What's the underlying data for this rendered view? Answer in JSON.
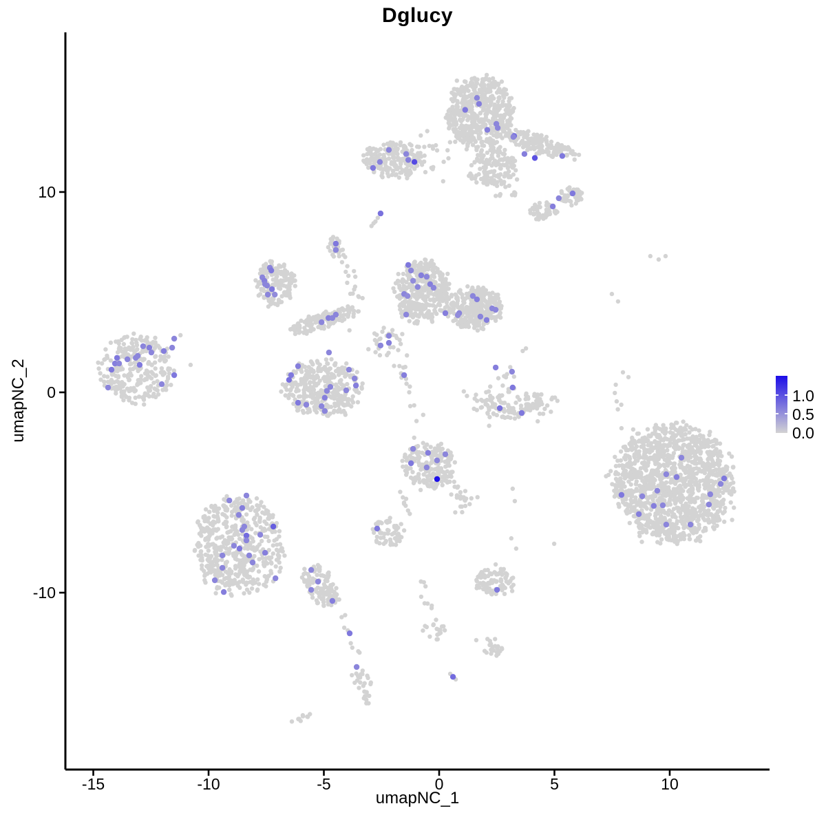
{
  "title": "Dglucy",
  "axes": {
    "xlabel": "umapNC_1",
    "ylabel": "umapNC_2",
    "x_ticks": [
      -15,
      -10,
      -5,
      0,
      5,
      10
    ],
    "y_ticks": [
      -10,
      0,
      10
    ],
    "x_range": [
      -16.21,
      14.33
    ],
    "y_range": [
      -18.83,
      17.97
    ]
  },
  "legend": {
    "labels": [
      "1.0",
      "0.5",
      "0.0"
    ],
    "max_value": 1.52
  },
  "colors": {
    "low": "#d3d3d3",
    "high": "#1c0de8",
    "axis": "#000000",
    "background": "#ffffff"
  },
  "chart_data": {
    "type": "scatter",
    "title": "Dglucy",
    "xlabel": "umapNC_1",
    "ylabel": "umapNC_2",
    "xlim": [
      -16.21,
      14.33
    ],
    "ylim": [
      -18.83,
      17.97
    ],
    "legend_position": "right",
    "grid": false,
    "point_radius_gray": 3.2,
    "point_radius_expressing": 4.2,
    "clusters": [
      {
        "kind": "disk",
        "cx": 1.78,
        "cy": 13.95,
        "rx": 1.45,
        "ry": 1.8,
        "n": 520
      },
      {
        "kind": "disk",
        "cx": 2.3,
        "cy": 11.25,
        "rx": 1.05,
        "ry": 0.95,
        "n": 130
      },
      {
        "kind": "gauss",
        "cx": -0.2,
        "cy": 11.7,
        "rx": 0.55,
        "ry": 0.8,
        "n": 20
      },
      {
        "kind": "disk",
        "cx": 4.4,
        "cy": 12.35,
        "rx": 1.55,
        "ry": 0.5,
        "n": 160,
        "tilt": -0.35
      },
      {
        "kind": "disk",
        "cx": 5.75,
        "cy": 9.8,
        "rx": 0.48,
        "ry": 0.45,
        "n": 55
      },
      {
        "kind": "disk",
        "cx": 4.5,
        "cy": 9.05,
        "rx": 0.6,
        "ry": 0.45,
        "n": 45
      },
      {
        "kind": "gauss",
        "cx": 3.0,
        "cy": 10.1,
        "rx": 0.3,
        "ry": 0.25,
        "n": 14
      },
      {
        "kind": "disk",
        "cx": -1.99,
        "cy": 11.63,
        "rx": 1.32,
        "ry": 0.92,
        "n": 190
      },
      {
        "kind": "disk",
        "cx": -4.5,
        "cy": 7.2,
        "rx": 0.35,
        "ry": 0.55,
        "n": 26
      },
      {
        "kind": "disk",
        "cx": -7.1,
        "cy": 5.43,
        "rx": 0.85,
        "ry": 1.1,
        "n": 150
      },
      {
        "kind": "disk",
        "cx": -0.73,
        "cy": 5.02,
        "rx": 1.15,
        "ry": 1.6,
        "n": 380
      },
      {
        "kind": "disk",
        "cx": 1.55,
        "cy": 4.23,
        "rx": 1.15,
        "ry": 1.05,
        "n": 300
      },
      {
        "kind": "disk",
        "cx": -5.0,
        "cy": 3.6,
        "rx": 1.5,
        "ry": 0.42,
        "n": 140,
        "tilt": 0.35
      },
      {
        "kind": "gauss",
        "cx": -2.3,
        "cy": 2.55,
        "rx": 0.45,
        "ry": 0.4,
        "n": 22
      },
      {
        "kind": "disk",
        "cx": -5.04,
        "cy": 0.24,
        "rx": 1.65,
        "ry": 1.4,
        "n": 330
      },
      {
        "kind": "disk",
        "cx": -13.1,
        "cy": 1.15,
        "rx": 1.6,
        "ry": 1.7,
        "n": 270
      },
      {
        "kind": "gauss",
        "cx": 3.0,
        "cy": 0.9,
        "rx": 0.5,
        "ry": 0.8,
        "n": 16
      },
      {
        "kind": "gauss",
        "cx": 2.15,
        "cy": -0.5,
        "rx": 0.45,
        "ry": 0.35,
        "n": 40
      },
      {
        "kind": "gauss",
        "cx": 3.2,
        "cy": -0.95,
        "rx": 0.55,
        "ry": 0.3,
        "n": 55
      },
      {
        "kind": "gauss",
        "cx": 4.2,
        "cy": -0.5,
        "rx": 0.4,
        "ry": 0.3,
        "n": 40
      },
      {
        "kind": "disk",
        "cx": 10.15,
        "cy": -4.55,
        "rx": 2.6,
        "ry": 2.9,
        "n": 1350
      },
      {
        "kind": "disk",
        "cx": -0.42,
        "cy": -3.64,
        "rx": 1.1,
        "ry": 1.2,
        "n": 190
      },
      {
        "kind": "disk",
        "cx": -2.21,
        "cy": -6.98,
        "rx": 0.72,
        "ry": 0.7,
        "n": 60
      },
      {
        "kind": "disk",
        "cx": -8.66,
        "cy": -7.63,
        "rx": 1.95,
        "ry": 2.5,
        "n": 520
      },
      {
        "kind": "disk",
        "cx": -5.16,
        "cy": -9.62,
        "rx": 0.8,
        "ry": 1.0,
        "n": 110,
        "tilt": -0.5
      },
      {
        "kind": "disk",
        "cx": 2.43,
        "cy": -9.48,
        "rx": 0.85,
        "ry": 0.72,
        "n": 85
      },
      {
        "kind": "disk",
        "cx": 2.3,
        "cy": -12.7,
        "rx": 0.5,
        "ry": 0.42,
        "n": 22
      },
      {
        "kind": "gauss",
        "cx": -0.15,
        "cy": -12.05,
        "rx": 0.28,
        "ry": 0.3,
        "n": 13
      }
    ],
    "strands": [
      {
        "x1": -2.95,
        "y1": 8.3,
        "x2": -2.62,
        "y2": 8.72,
        "n": 4,
        "jitter": 0.05
      },
      {
        "x1": -4.2,
        "y1": 6.75,
        "x2": -3.6,
        "y2": 4.6,
        "n": 8,
        "jitter": 0.12
      },
      {
        "x1": -4.1,
        "y1": 6.6,
        "x2": -3.15,
        "y2": 4.4,
        "n": 8,
        "jitter": 0.15
      },
      {
        "x1": -3.25,
        "y1": 3.3,
        "x2": -1.75,
        "y2": 1.0,
        "n": 13,
        "jitter": 0.3
      },
      {
        "x1": -1.73,
        "y1": 1.4,
        "x2": -1.25,
        "y2": 0.3,
        "n": 6,
        "jitter": 0.1
      },
      {
        "x1": -1.25,
        "y1": 0.2,
        "x2": -0.85,
        "y2": -2.3,
        "n": 6,
        "jitter": 0.15
      },
      {
        "x1": 0.6,
        "y1": -4.4,
        "x2": 1.2,
        "y2": -5.8,
        "n": 28,
        "jitter": 0.22
      },
      {
        "x1": -1.8,
        "y1": -5.0,
        "x2": -1.25,
        "y2": -6.15,
        "n": 8,
        "jitter": 0.12
      },
      {
        "x1": -0.84,
        "y1": -9.21,
        "x2": 0.06,
        "y2": -12.3,
        "n": 13,
        "jitter": 0.12
      },
      {
        "x1": -4.27,
        "y1": -10.93,
        "x2": -3.58,
        "y2": -13.23,
        "n": 9,
        "jitter": 0.1
      },
      {
        "x1": -3.67,
        "y1": -13.9,
        "x2": -3.05,
        "y2": -15.45,
        "n": 26,
        "jitter": 0.2
      },
      {
        "x1": -6.2,
        "y1": -16.5,
        "x2": -5.65,
        "y2": -16.05,
        "n": 10,
        "jitter": 0.1
      }
    ],
    "gray_points": [
      [
        -11.22,
        2.85
      ],
      [
        -10.78,
        1.37
      ],
      [
        2.54,
        12.03
      ],
      [
        2.84,
        11.68
      ],
      [
        2.99,
        11.24
      ],
      [
        1.61,
        10.82
      ],
      [
        9.16,
        6.8
      ],
      [
        9.52,
        6.63
      ],
      [
        9.82,
        6.8
      ],
      [
        7.49,
        4.91
      ],
      [
        7.76,
        4.54
      ],
      [
        7.97,
        1.0
      ],
      [
        8.21,
        0.76
      ],
      [
        7.66,
        0.38
      ],
      [
        7.62,
        -0.03
      ],
      [
        7.7,
        -0.45
      ],
      [
        7.9,
        -0.62
      ],
      [
        7.75,
        -0.85
      ],
      [
        7.91,
        -1.79
      ],
      [
        3.19,
        -4.81
      ],
      [
        3.28,
        -5.43
      ],
      [
        4.99,
        -7.56
      ],
      [
        3.13,
        -7.29
      ],
      [
        3.34,
        -7.8
      ],
      [
        2.45,
        -8.59
      ],
      [
        1.61,
        -12.37
      ],
      [
        0.48,
        -14.05
      ],
      [
        0.72,
        -14.33
      ]
    ],
    "expressing_points": [
      [
        1.64,
        14.7,
        0.6
      ],
      [
        1.73,
        14.4,
        0.65
      ],
      [
        1.13,
        14.1,
        0.7
      ],
      [
        2.48,
        13.4,
        0.6
      ],
      [
        2.09,
        13.1,
        0.65
      ],
      [
        2.54,
        13.2,
        0.6
      ],
      [
        3.25,
        12.8,
        0.8
      ],
      [
        3.22,
        12.75,
        0.6
      ],
      [
        3.7,
        11.9,
        0.65
      ],
      [
        4.15,
        11.7,
        1.0
      ],
      [
        5.34,
        11.8,
        0.7
      ],
      [
        5.79,
        9.93,
        0.7
      ],
      [
        5.19,
        9.69,
        0.6
      ],
      [
        4.93,
        9.28,
        0.65
      ],
      [
        -2.18,
        12.1,
        0.6
      ],
      [
        -1.43,
        11.9,
        0.6
      ],
      [
        -2.57,
        11.5,
        0.6
      ],
      [
        -2.87,
        11.2,
        0.7
      ],
      [
        -1.34,
        11.6,
        0.65
      ],
      [
        -1.07,
        11.5,
        1.05
      ],
      [
        -2.54,
        8.93,
        0.75
      ],
      [
        -4.48,
        7.42,
        0.7
      ],
      [
        -4.48,
        7.11,
        0.6
      ],
      [
        -7.34,
        6.22,
        0.6
      ],
      [
        -7.28,
        6.08,
        0.7
      ],
      [
        -7.67,
        5.74,
        0.6
      ],
      [
        -7.58,
        5.57,
        0.65
      ],
      [
        -7.55,
        5.4,
        0.6
      ],
      [
        -7.46,
        5.33,
        0.6
      ],
      [
        -7.25,
        5.15,
        0.7
      ],
      [
        -7.43,
        4.88,
        0.6
      ],
      [
        -7.13,
        4.88,
        0.55
      ],
      [
        -1.34,
        6.36,
        0.7
      ],
      [
        -1.22,
        6.08,
        0.6
      ],
      [
        -0.78,
        5.84,
        0.65
      ],
      [
        -0.54,
        5.77,
        0.6
      ],
      [
        -1.13,
        5.57,
        0.55
      ],
      [
        -0.93,
        5.26,
        0.6
      ],
      [
        -0.39,
        5.4,
        0.65
      ],
      [
        -0.24,
        5.22,
        0.6
      ],
      [
        -1.52,
        4.91,
        0.6
      ],
      [
        -1.37,
        4.81,
        0.55
      ],
      [
        -1.43,
        3.88,
        0.6
      ],
      [
        0.27,
        3.95,
        0.65
      ],
      [
        1.46,
        4.81,
        0.6
      ],
      [
        1.64,
        4.64,
        0.65
      ],
      [
        2.3,
        4.19,
        0.6
      ],
      [
        2.45,
        4.12,
        0.6
      ],
      [
        0.87,
        3.95,
        0.6
      ],
      [
        1.79,
        3.78,
        0.6
      ],
      [
        2.06,
        3.61,
        0.65
      ],
      [
        0.81,
        3.85,
        0.55
      ],
      [
        -5.1,
        3.5,
        0.6
      ],
      [
        -4.8,
        3.71,
        0.65
      ],
      [
        -4.48,
        3.88,
        0.6
      ],
      [
        -4.63,
        3.71,
        0.6
      ],
      [
        -2.18,
        2.82,
        0.6
      ],
      [
        -2.18,
        2.47,
        0.65
      ],
      [
        -2.54,
        2.34,
        0.6
      ],
      [
        -4.78,
        1.99,
        0.6
      ],
      [
        -6.12,
        1.31,
        0.65
      ],
      [
        -6.42,
        0.86,
        0.7
      ],
      [
        -6.51,
        0.62,
        0.75
      ],
      [
        -3.91,
        1.13,
        0.6
      ],
      [
        -3.67,
        0.69,
        0.6
      ],
      [
        -3.61,
        0.34,
        0.65
      ],
      [
        -4.03,
        0.1,
        0.6
      ],
      [
        -4.72,
        0.27,
        0.6
      ],
      [
        -4.87,
        0.07,
        0.6
      ],
      [
        -4.96,
        -0.27,
        0.65
      ],
      [
        -6.12,
        -0.52,
        0.7
      ],
      [
        -5.76,
        -0.62,
        0.6
      ],
      [
        -5.1,
        -0.69,
        0.6
      ],
      [
        -4.96,
        -0.93,
        0.6
      ],
      [
        -1.52,
        0.86,
        0.65
      ],
      [
        -11.49,
        2.68,
        0.6
      ],
      [
        -12.84,
        2.3,
        0.6
      ],
      [
        -12.57,
        2.23,
        0.65
      ],
      [
        -12.48,
        1.99,
        0.6
      ],
      [
        -11.58,
        2.23,
        0.6
      ],
      [
        -11.94,
        2.06,
        0.65
      ],
      [
        -13.97,
        1.72,
        0.7
      ],
      [
        -13.52,
        1.65,
        0.6
      ],
      [
        -13.07,
        1.82,
        0.6
      ],
      [
        -13.16,
        1.72,
        0.6
      ],
      [
        -14.06,
        1.44,
        0.65
      ],
      [
        -13.88,
        1.44,
        0.6
      ],
      [
        -12.99,
        1.37,
        0.7
      ],
      [
        -14.21,
        1.13,
        0.7
      ],
      [
        -14.36,
        0.24,
        0.6
      ],
      [
        -11.49,
        0.86,
        0.7
      ],
      [
        -12.03,
        0.41,
        0.6
      ],
      [
        2.45,
        1.24,
        0.65
      ],
      [
        3.16,
        1.03,
        0.6
      ],
      [
        3.19,
        0.24,
        0.7
      ],
      [
        2.63,
        -0.79,
        0.75
      ],
      [
        3.58,
        -1.03,
        0.7
      ],
      [
        10.51,
        -3.26,
        0.6
      ],
      [
        9.85,
        -4.09,
        0.6
      ],
      [
        10.3,
        -4.23,
        0.65
      ],
      [
        9.46,
        -4.91,
        0.6
      ],
      [
        7.91,
        -5.12,
        0.7
      ],
      [
        8.81,
        -5.19,
        0.6
      ],
      [
        12.36,
        -4.3,
        0.7
      ],
      [
        12.21,
        -4.57,
        0.6
      ],
      [
        11.76,
        -5.09,
        0.6
      ],
      [
        9.31,
        -5.67,
        0.65
      ],
      [
        9.7,
        -5.64,
        0.6
      ],
      [
        11.7,
        -5.6,
        0.6
      ],
      [
        8.66,
        -6.08,
        0.65
      ],
      [
        9.85,
        -6.6,
        0.6
      ],
      [
        10.9,
        -6.6,
        0.6
      ],
      [
        -1.13,
        -2.82,
        0.6
      ],
      [
        -0.48,
        -3.02,
        0.65
      ],
      [
        0.27,
        -3.09,
        0.6
      ],
      [
        -0.09,
        -3.4,
        0.6
      ],
      [
        -1.22,
        -3.54,
        0.7
      ],
      [
        -0.54,
        -3.75,
        0.6
      ],
      [
        -0.09,
        -4.33,
        1.5
      ],
      [
        -2.69,
        -6.8,
        0.7
      ],
      [
        -8.36,
        -5.15,
        0.6
      ],
      [
        -9.1,
        -5.4,
        0.6
      ],
      [
        -8.54,
        -5.77,
        0.65
      ],
      [
        -8.69,
        -6.12,
        0.6
      ],
      [
        -8.45,
        -6.7,
        0.6
      ],
      [
        -8.54,
        -6.87,
        0.6
      ],
      [
        -8.36,
        -7.15,
        0.8
      ],
      [
        -7.76,
        -7.11,
        0.6
      ],
      [
        -7.19,
        -6.7,
        0.9
      ],
      [
        -8.36,
        -7.39,
        0.6
      ],
      [
        -8.9,
        -7.66,
        0.6
      ],
      [
        -8.66,
        -7.8,
        0.7
      ],
      [
        -9.4,
        -8.14,
        0.6
      ],
      [
        -7.55,
        -8.01,
        0.65
      ],
      [
        -8.24,
        -8.14,
        0.6
      ],
      [
        -8.09,
        -8.49,
        0.6
      ],
      [
        -9.4,
        -8.76,
        0.6
      ],
      [
        -9.73,
        -9.38,
        0.6
      ],
      [
        -7.1,
        -9.28,
        0.6
      ],
      [
        -9.34,
        -9.97,
        0.65
      ],
      [
        -5.55,
        -8.87,
        0.6
      ],
      [
        -5.25,
        -9.45,
        0.6
      ],
      [
        -5.55,
        -9.86,
        0.6
      ],
      [
        -4.63,
        -10.41,
        0.65
      ],
      [
        -3.88,
        -12.03,
        0.7
      ],
      [
        -3.58,
        -13.71,
        0.6
      ],
      [
        2.51,
        -9.86,
        0.7
      ],
      [
        0.6,
        -14.2,
        0.8
      ]
    ]
  }
}
